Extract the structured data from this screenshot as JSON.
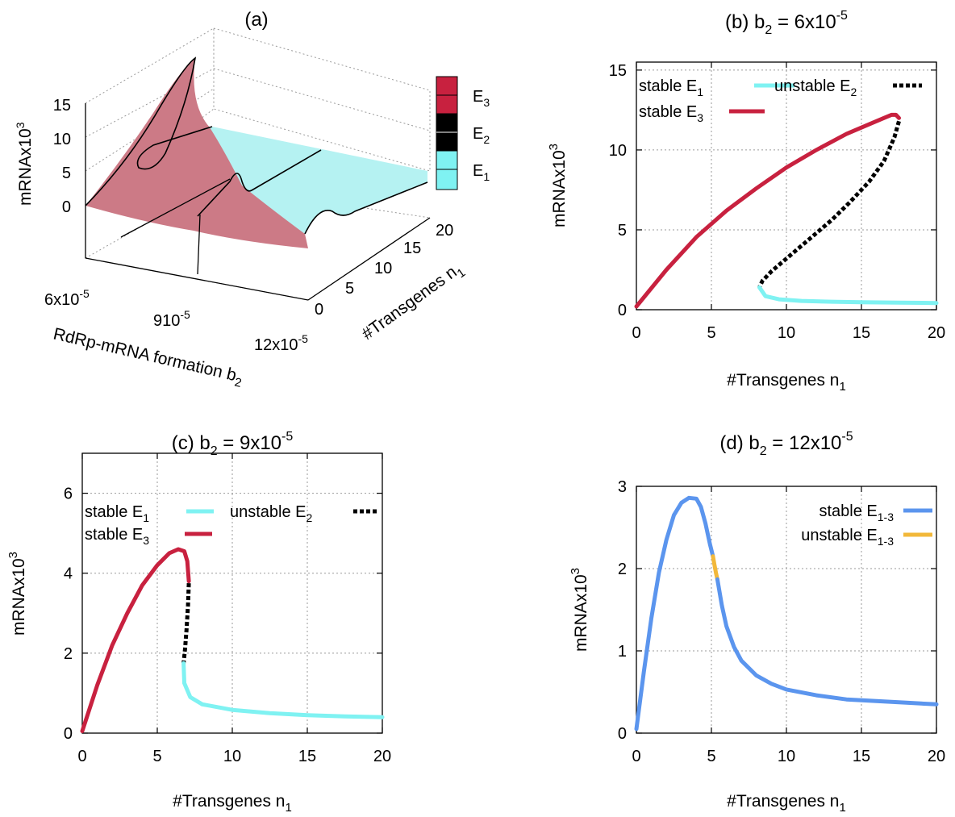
{
  "chart_data": [
    {
      "id": "a",
      "type": "surface3d",
      "title": "(a)",
      "zlabel": "mRNAx10",
      "zlabel_sup": "3",
      "ztick_labels": [
        "0",
        "5",
        "10",
        "15"
      ],
      "xlabel": "RdRp-mRNA formation b",
      "xlabel_sub": "2",
      "x_ticks": [
        {
          "base": "6x10",
          "sup": "-5"
        },
        {
          "base": "910",
          "sup": "-5"
        },
        {
          "base": "12x10",
          "sup": "-5"
        }
      ],
      "ylabel": "#Transgenes n",
      "ylabel_sub": "1",
      "ytick_labels": [
        "0",
        "5",
        "10",
        "15",
        "20"
      ],
      "colors": {
        "E3": "#c8213f",
        "E2": "#000000",
        "E1": "#7ff2f2",
        "surface_E3": "#cc7a86",
        "surface_E1": "#b5f2f2"
      },
      "colorbar": [
        {
          "label": "E",
          "sub": "3",
          "color": "#c8213f"
        },
        {
          "label": "E",
          "sub": "2",
          "color": "#000000"
        },
        {
          "label": "E",
          "sub": "1",
          "color": "#7ff2f2"
        }
      ]
    },
    {
      "id": "b",
      "type": "line",
      "title": "(b) b",
      "title_sub": "2",
      "title_rest": " = 6x10",
      "title_sup": "-5",
      "xlabel": "#Transgenes n",
      "xlabel_sub": "1",
      "ylabel": "mRNAx10",
      "ylabel_sup": "3",
      "xlim": [
        0,
        20
      ],
      "ylim": [
        0,
        15.5
      ],
      "xticks": [
        0,
        5,
        10,
        15,
        20
      ],
      "yticks": [
        0,
        5,
        10,
        15
      ],
      "legend": [
        {
          "label": "stable E",
          "sub": "1",
          "color": "#7ff2f2",
          "dashed": false
        },
        {
          "label": "unstable E",
          "sub": "2",
          "color": "#000000",
          "dashed": true
        },
        {
          "label": "stable E",
          "sub": "3",
          "color": "#c8213f",
          "dashed": false
        }
      ],
      "series": [
        {
          "name": "stable E3",
          "color": "#c8213f",
          "dashed": false,
          "x": [
            0,
            2,
            4,
            6,
            8,
            10,
            12,
            14,
            15.5,
            16.5,
            17,
            17.3,
            17.5
          ],
          "y": [
            0.2,
            2.5,
            4.55,
            6.2,
            7.6,
            8.9,
            10.0,
            11.0,
            11.6,
            12.0,
            12.2,
            12.2,
            12.0
          ]
        },
        {
          "name": "unstable E2",
          "color": "#000000",
          "dashed": true,
          "x": [
            17.5,
            17.2,
            16.5,
            15.5,
            14.2,
            13.0,
            11.5,
            10.0,
            9.0,
            8.4,
            8.2
          ],
          "y": [
            11.8,
            10.8,
            9.3,
            8.0,
            6.7,
            5.6,
            4.4,
            3.2,
            2.4,
            1.8,
            1.4
          ]
        },
        {
          "name": "stable E1",
          "color": "#7ff2f2",
          "dashed": false,
          "x": [
            8.2,
            8.6,
            9.5,
            11,
            13,
            15,
            17.5,
            20
          ],
          "y": [
            1.4,
            0.85,
            0.65,
            0.55,
            0.5,
            0.47,
            0.44,
            0.42
          ]
        }
      ]
    },
    {
      "id": "c",
      "type": "line",
      "title": "(c) b",
      "title_sub": "2",
      "title_rest": " = 9x10",
      "title_sup": "-5",
      "xlabel": "#Transgenes n",
      "xlabel_sub": "1",
      "ylabel": "mRNAx10",
      "ylabel_sup": "3",
      "xlim": [
        0,
        20
      ],
      "ylim": [
        0,
        7
      ],
      "xticks": [
        0,
        5,
        10,
        15,
        20
      ],
      "yticks": [
        0,
        2,
        4,
        6
      ],
      "legend": [
        {
          "label": "stable E",
          "sub": "1",
          "color": "#7ff2f2",
          "dashed": false
        },
        {
          "label": "unstable E",
          "sub": "2",
          "color": "#000000",
          "dashed": true
        },
        {
          "label": "stable E",
          "sub": "3",
          "color": "#c8213f",
          "dashed": false
        }
      ],
      "series": [
        {
          "name": "stable E3",
          "color": "#c8213f",
          "dashed": false,
          "x": [
            0,
            1,
            2,
            3,
            4,
            5,
            5.8,
            6.4,
            6.8,
            7.0,
            7.1
          ],
          "y": [
            0.05,
            1.2,
            2.2,
            3.0,
            3.7,
            4.2,
            4.5,
            4.6,
            4.55,
            4.3,
            3.8
          ]
        },
        {
          "name": "unstable E2",
          "color": "#000000",
          "dashed": true,
          "x": [
            7.1,
            7.05,
            6.95,
            6.85,
            6.75
          ],
          "y": [
            3.75,
            3.2,
            2.6,
            2.1,
            1.75
          ]
        },
        {
          "name": "stable E1",
          "color": "#7ff2f2",
          "dashed": false,
          "x": [
            6.75,
            6.8,
            7.2,
            8.0,
            10,
            12.5,
            15,
            17.5,
            20
          ],
          "y": [
            1.75,
            1.25,
            0.9,
            0.72,
            0.58,
            0.5,
            0.45,
            0.42,
            0.4
          ]
        }
      ]
    },
    {
      "id": "d",
      "type": "line",
      "title": "(d) b",
      "title_sub": "2",
      "title_rest": " = 12x10",
      "title_sup": "-5",
      "xlabel": "#Transgenes n",
      "xlabel_sub": "1",
      "ylabel": "mRNAx10",
      "ylabel_sup": "3",
      "xlim": [
        0,
        20
      ],
      "ylim": [
        0,
        3
      ],
      "xticks": [
        0,
        5,
        10,
        15,
        20
      ],
      "yticks": [
        0,
        1,
        2,
        3
      ],
      "legend": [
        {
          "label": "stable E",
          "sub": "1-3",
          "color": "#5b95ee",
          "dashed": false
        },
        {
          "label": "unstable E",
          "sub": "1-3",
          "color": "#f2b83a",
          "dashed": false
        }
      ],
      "series": [
        {
          "name": "stable E1-3",
          "color": "#5b95ee",
          "dashed": false,
          "x": [
            0,
            0.5,
            1,
            1.5,
            2,
            2.5,
            3,
            3.5,
            4,
            4.3,
            4.6,
            4.9,
            5.1
          ],
          "y": [
            0.05,
            0.75,
            1.4,
            1.95,
            2.35,
            2.65,
            2.8,
            2.86,
            2.85,
            2.75,
            2.55,
            2.3,
            2.15
          ]
        },
        {
          "name": "unstable E1-3",
          "color": "#f2b83a",
          "dashed": false,
          "x": [
            5.1,
            5.2,
            5.3,
            5.4
          ],
          "y": [
            2.15,
            2.05,
            1.95,
            1.87
          ]
        },
        {
          "name": "stable E1-3",
          "color": "#5b95ee",
          "dashed": false,
          "x": [
            5.4,
            5.7,
            6,
            6.5,
            7,
            8,
            9,
            10,
            12,
            14,
            16,
            18,
            20
          ],
          "y": [
            1.87,
            1.55,
            1.3,
            1.05,
            0.88,
            0.7,
            0.6,
            0.53,
            0.46,
            0.41,
            0.39,
            0.37,
            0.35
          ]
        }
      ]
    }
  ]
}
